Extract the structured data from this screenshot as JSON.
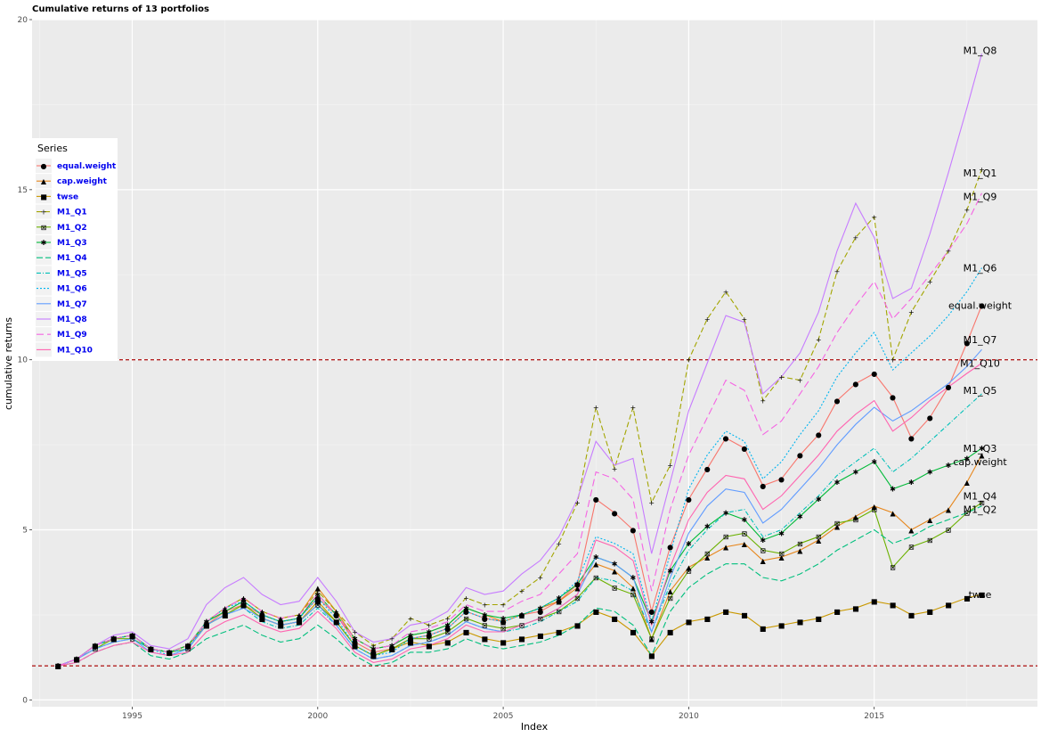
{
  "chart_data": {
    "type": "line",
    "title": "Cumulative returns of 13 portfolios",
    "xlabel": "Index",
    "ylabel": "cumulative returns",
    "xlim": [
      1992.3,
      2019.4
    ],
    "ylim": [
      -0.2,
      20
    ],
    "x_ticks": [
      1995,
      2000,
      2005,
      2010,
      2015
    ],
    "y_ticks": [
      0,
      5,
      10,
      15,
      20
    ],
    "grid": true,
    "legend": {
      "title": "Series",
      "position": "left"
    },
    "hlines": [
      1,
      10
    ],
    "x": [
      1993.0,
      1993.5,
      1994.0,
      1994.5,
      1995.0,
      1995.5,
      1996.0,
      1996.5,
      1997.0,
      1997.5,
      1998.0,
      1998.5,
      1999.0,
      1999.5,
      2000.0,
      2000.5,
      2001.0,
      2001.5,
      2002.0,
      2002.5,
      2003.0,
      2003.5,
      2004.0,
      2004.5,
      2005.0,
      2005.5,
      2006.0,
      2006.5,
      2007.0,
      2007.5,
      2008.0,
      2008.5,
      2009.0,
      2009.5,
      2010.0,
      2010.5,
      2011.0,
      2011.5,
      2012.0,
      2012.5,
      2013.0,
      2013.5,
      2014.0,
      2014.5,
      2015.0,
      2015.5,
      2016.0,
      2016.5,
      2017.0,
      2017.5,
      2017.9
    ],
    "series": [
      {
        "name": "equal.weight",
        "color": "#F8766D",
        "marker": "●",
        "dash": "",
        "values": [
          1.0,
          1.2,
          1.6,
          1.8,
          1.9,
          1.5,
          1.4,
          1.6,
          2.2,
          2.6,
          2.8,
          2.5,
          2.3,
          2.4,
          3.0,
          2.5,
          1.7,
          1.4,
          1.5,
          1.8,
          1.9,
          2.1,
          2.6,
          2.4,
          2.3,
          2.5,
          2.6,
          2.9,
          3.4,
          5.9,
          5.5,
          5.0,
          2.6,
          4.5,
          5.9,
          6.8,
          7.7,
          7.4,
          6.3,
          6.5,
          7.2,
          7.8,
          8.8,
          9.3,
          9.6,
          8.9,
          7.7,
          8.3,
          9.2,
          10.5,
          11.6
        ]
      },
      {
        "name": "cap.weight",
        "color": "#E7861B",
        "marker": "▲",
        "dash": "",
        "values": [
          1.0,
          1.2,
          1.6,
          1.8,
          1.9,
          1.5,
          1.4,
          1.6,
          2.3,
          2.7,
          3.0,
          2.6,
          2.4,
          2.5,
          3.3,
          2.6,
          1.8,
          1.5,
          1.6,
          1.9,
          2.0,
          2.2,
          2.7,
          2.5,
          2.3,
          2.5,
          2.7,
          2.9,
          3.3,
          4.0,
          3.8,
          3.3,
          1.8,
          3.2,
          3.9,
          4.2,
          4.5,
          4.6,
          4.1,
          4.2,
          4.4,
          4.7,
          5.1,
          5.4,
          5.7,
          5.5,
          5.0,
          5.3,
          5.6,
          6.4,
          7.2
        ]
      },
      {
        "name": "twse",
        "color": "#C99800",
        "marker": "■",
        "dash": "",
        "values": [
          1.0,
          1.2,
          1.6,
          1.8,
          1.9,
          1.5,
          1.4,
          1.6,
          2.2,
          2.5,
          2.8,
          2.4,
          2.2,
          2.3,
          2.9,
          2.3,
          1.6,
          1.3,
          1.5,
          1.7,
          1.6,
          1.7,
          2.0,
          1.8,
          1.7,
          1.8,
          1.9,
          2.0,
          2.2,
          2.6,
          2.4,
          2.0,
          1.3,
          2.0,
          2.3,
          2.4,
          2.6,
          2.5,
          2.1,
          2.2,
          2.3,
          2.4,
          2.6,
          2.7,
          2.9,
          2.8,
          2.5,
          2.6,
          2.8,
          3.0,
          3.1
        ]
      },
      {
        "name": "M1_Q1",
        "color": "#A3A500",
        "marker": "+",
        "dash": "6,3",
        "values": [
          1.0,
          1.2,
          1.6,
          1.8,
          1.9,
          1.5,
          1.4,
          1.6,
          2.3,
          2.7,
          3.0,
          2.6,
          2.4,
          2.5,
          3.2,
          2.6,
          2.0,
          1.6,
          1.8,
          2.4,
          2.2,
          2.4,
          3.0,
          2.8,
          2.8,
          3.2,
          3.6,
          4.6,
          5.8,
          8.6,
          6.8,
          8.6,
          5.8,
          6.9,
          10.0,
          11.2,
          12.0,
          11.2,
          8.8,
          9.5,
          9.4,
          10.6,
          12.6,
          13.6,
          14.2,
          10.0,
          11.4,
          12.3,
          13.2,
          14.4,
          15.6
        ]
      },
      {
        "name": "M1_Q2",
        "color": "#6BB100",
        "marker": "⊠",
        "dash": "",
        "values": [
          1.0,
          1.2,
          1.5,
          1.8,
          1.8,
          1.5,
          1.4,
          1.5,
          2.2,
          2.5,
          2.8,
          2.4,
          2.2,
          2.3,
          2.8,
          2.3,
          1.6,
          1.3,
          1.5,
          1.8,
          1.8,
          2.0,
          2.4,
          2.2,
          2.1,
          2.2,
          2.4,
          2.6,
          3.0,
          3.6,
          3.3,
          3.1,
          1.8,
          3.0,
          3.8,
          4.3,
          4.8,
          4.9,
          4.4,
          4.3,
          4.6,
          4.8,
          5.2,
          5.3,
          5.6,
          3.9,
          4.5,
          4.7,
          5.0,
          5.5,
          5.8
        ]
      },
      {
        "name": "M1_Q3",
        "color": "#00BA38",
        "marker": "✱",
        "dash": "",
        "values": [
          1.0,
          1.2,
          1.6,
          1.8,
          1.9,
          1.5,
          1.4,
          1.6,
          2.3,
          2.6,
          2.9,
          2.5,
          2.3,
          2.4,
          3.1,
          2.5,
          1.8,
          1.5,
          1.6,
          1.9,
          2.0,
          2.2,
          2.7,
          2.5,
          2.4,
          2.5,
          2.7,
          3.0,
          3.4,
          4.2,
          4.0,
          3.6,
          2.3,
          3.8,
          4.6,
          5.1,
          5.5,
          5.3,
          4.7,
          4.9,
          5.4,
          5.9,
          6.4,
          6.7,
          7.0,
          6.2,
          6.4,
          6.7,
          6.9,
          7.1,
          7.4
        ]
      },
      {
        "name": "M1_Q4",
        "color": "#00BF7D",
        "marker": "",
        "dash": "7,3",
        "values": [
          1.0,
          1.1,
          1.4,
          1.6,
          1.7,
          1.3,
          1.2,
          1.4,
          1.8,
          2.0,
          2.2,
          1.9,
          1.7,
          1.8,
          2.2,
          1.8,
          1.3,
          1.0,
          1.1,
          1.4,
          1.4,
          1.5,
          1.8,
          1.6,
          1.5,
          1.6,
          1.7,
          1.9,
          2.2,
          2.7,
          2.6,
          2.2,
          1.3,
          2.6,
          3.3,
          3.7,
          4.0,
          4.0,
          3.6,
          3.5,
          3.7,
          4.0,
          4.4,
          4.7,
          5.0,
          4.6,
          4.8,
          5.1,
          5.3,
          5.5,
          5.7
        ]
      },
      {
        "name": "M1_Q5",
        "color": "#00C0B8",
        "marker": "",
        "dash": "5,2,1,2",
        "values": [
          1.0,
          1.2,
          1.5,
          1.7,
          1.8,
          1.5,
          1.4,
          1.5,
          2.2,
          2.5,
          2.7,
          2.3,
          2.1,
          2.2,
          2.7,
          2.2,
          1.5,
          1.2,
          1.3,
          1.6,
          1.7,
          1.9,
          2.3,
          2.1,
          2.0,
          2.1,
          2.3,
          2.6,
          2.9,
          3.6,
          3.5,
          3.2,
          2.0,
          3.4,
          4.4,
          5.0,
          5.5,
          5.6,
          4.8,
          5.0,
          5.5,
          6.0,
          6.6,
          7.0,
          7.4,
          6.7,
          7.1,
          7.6,
          8.1,
          8.6,
          9.0
        ]
      },
      {
        "name": "M1_Q6",
        "color": "#00B4EF",
        "marker": "",
        "dash": "2,2",
        "values": [
          1.0,
          1.2,
          1.6,
          1.8,
          1.9,
          1.5,
          1.3,
          1.5,
          2.3,
          2.7,
          2.9,
          2.5,
          2.3,
          2.4,
          3.0,
          2.4,
          1.6,
          1.3,
          1.4,
          1.8,
          1.9,
          2.1,
          2.6,
          2.4,
          2.3,
          2.5,
          2.7,
          3.0,
          3.5,
          4.8,
          4.6,
          4.3,
          2.3,
          4.3,
          6.2,
          7.2,
          7.9,
          7.6,
          6.5,
          7.0,
          7.8,
          8.5,
          9.5,
          10.2,
          10.8,
          9.7,
          10.2,
          10.7,
          11.3,
          12.0,
          12.7
        ]
      },
      {
        "name": "M1_Q7",
        "color": "#619CFF",
        "marker": "",
        "dash": "",
        "values": [
          1.0,
          1.2,
          1.5,
          1.7,
          1.8,
          1.4,
          1.3,
          1.5,
          2.2,
          2.5,
          2.7,
          2.4,
          2.2,
          2.3,
          2.8,
          2.2,
          1.5,
          1.2,
          1.3,
          1.6,
          1.7,
          1.9,
          2.3,
          2.1,
          2.0,
          2.2,
          2.4,
          2.7,
          3.1,
          4.2,
          4.0,
          3.6,
          2.0,
          3.6,
          4.9,
          5.7,
          6.2,
          6.1,
          5.2,
          5.6,
          6.2,
          6.8,
          7.5,
          8.1,
          8.6,
          8.2,
          8.5,
          8.9,
          9.3,
          9.8,
          10.3
        ]
      },
      {
        "name": "M1_Q8",
        "color": "#C77CFF",
        "marker": "",
        "dash": "",
        "values": [
          1.0,
          1.2,
          1.6,
          1.9,
          2.0,
          1.6,
          1.5,
          1.8,
          2.8,
          3.3,
          3.6,
          3.1,
          2.8,
          2.9,
          3.6,
          2.9,
          2.0,
          1.7,
          1.8,
          2.2,
          2.3,
          2.6,
          3.3,
          3.1,
          3.2,
          3.7,
          4.1,
          4.8,
          5.9,
          7.6,
          6.9,
          7.1,
          4.3,
          6.4,
          8.5,
          9.9,
          11.3,
          11.1,
          9.0,
          9.5,
          10.2,
          11.4,
          13.2,
          14.6,
          13.6,
          11.8,
          12.1,
          13.7,
          15.5,
          17.4,
          19.0
        ]
      },
      {
        "name": "M1_Q9",
        "color": "#F564E3",
        "marker": "",
        "dash": "8,4",
        "values": [
          1.0,
          1.2,
          1.6,
          1.8,
          1.9,
          1.5,
          1.4,
          1.6,
          2.3,
          2.7,
          3.0,
          2.6,
          2.4,
          2.5,
          3.1,
          2.5,
          1.8,
          1.5,
          1.6,
          2.0,
          2.1,
          2.3,
          2.8,
          2.6,
          2.6,
          2.9,
          3.1,
          3.7,
          4.3,
          6.7,
          6.5,
          5.9,
          3.2,
          5.6,
          7.2,
          8.3,
          9.4,
          9.1,
          7.8,
          8.2,
          9.0,
          9.8,
          10.8,
          11.6,
          12.3,
          11.2,
          11.8,
          12.5,
          13.2,
          14.0,
          14.9
        ]
      },
      {
        "name": "M1_Q10",
        "color": "#FF64B0",
        "marker": "",
        "dash": "",
        "values": [
          1.0,
          1.1,
          1.4,
          1.6,
          1.7,
          1.4,
          1.3,
          1.4,
          2.0,
          2.3,
          2.5,
          2.2,
          2.0,
          2.1,
          2.6,
          2.1,
          1.4,
          1.1,
          1.2,
          1.5,
          1.6,
          1.8,
          2.2,
          2.0,
          2.0,
          2.2,
          2.4,
          2.7,
          3.1,
          4.7,
          4.5,
          4.1,
          2.2,
          3.9,
          5.3,
          6.1,
          6.6,
          6.5,
          5.6,
          6.0,
          6.6,
          7.2,
          7.9,
          8.4,
          8.8,
          7.9,
          8.3,
          8.8,
          9.2,
          9.6,
          9.9
        ]
      }
    ],
    "end_labels": [
      {
        "text": "M1_Q8",
        "y": 19.1
      },
      {
        "text": "M1_Q1",
        "y": 15.5
      },
      {
        "text": "M1_Q9",
        "y": 14.8
      },
      {
        "text": "M1_Q6",
        "y": 12.7
      },
      {
        "text": "equal.weight",
        "y": 11.6
      },
      {
        "text": "M1_Q7",
        "y": 10.6
      },
      {
        "text": "M1_Q10",
        "y": 9.9
      },
      {
        "text": "M1_Q5",
        "y": 9.1
      },
      {
        "text": "M1_Q3",
        "y": 7.4
      },
      {
        "text": "cap.weight",
        "y": 7.0
      },
      {
        "text": "M1_Q4",
        "y": 6.0
      },
      {
        "text": "M1_Q2",
        "y": 5.6
      },
      {
        "text": "twse",
        "y": 3.1
      }
    ]
  }
}
